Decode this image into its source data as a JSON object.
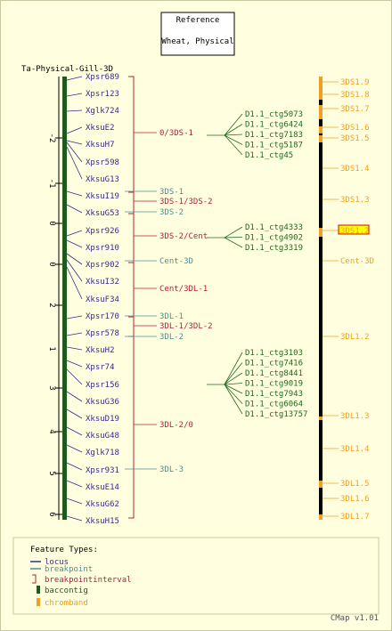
{
  "reference_box": {
    "line1": "Reference",
    "line2": "Wheat, Physical"
  },
  "map_title": "Ta-Physical-Gill-3D",
  "ruler_ticks": [
    "-2",
    "-1",
    "0",
    "0",
    "1",
    "2",
    "3",
    "4",
    "5",
    "6"
  ],
  "loci": [
    "Xpsr689",
    "Xpsr123",
    "Xglk724",
    "XksuE2",
    "XksuH7",
    "Xpsr598",
    "XksuG13",
    "XksuI19",
    "XksuG53",
    "Xpsr926",
    "Xpsr910",
    "Xpsr902",
    "XksuI32",
    "XksuF34",
    "Xpsr170",
    "Xpsr578",
    "XksuH2",
    "Xpsr74",
    "Xpsr156",
    "XksuG36",
    "XksuD19",
    "XksuG48",
    "Xglk718",
    "Xpsr931",
    "XksuE14",
    "XksuG62",
    "XksuH15"
  ],
  "intervals": [
    "0/3DS-1",
    "3DS-1/3DS-2",
    "3DS-2/Cent",
    "Cent/3DL-1",
    "3DL-1/3DL-2",
    "3DL-2/0"
  ],
  "breakpoints": [
    "3DS-1",
    "3DS-2",
    "Cent-3D",
    "3DL-1",
    "3DL-2",
    "3DL-3"
  ],
  "contig_groups": [
    [
      "D1.1_ctg5073",
      "D1.1_ctg6424",
      "D1.1_ctg7183",
      "D1.1_ctg5187",
      "D1.1_ctg45"
    ],
    [
      "D1.1_ctg4333",
      "D1.1_ctg4902",
      "D1.1_ctg3319"
    ],
    [
      "D1.1_ctg3103",
      "D1.1_ctg7416",
      "D1.1_ctg8441",
      "D1.1_ctg9019",
      "D1.1_ctg7943",
      "D1.1_ctg6064",
      "D1.1_ctg13757"
    ]
  ],
  "bands": [
    "3DS1.9",
    "3DS1.8",
    "3DS1.7",
    "3DS1.6",
    "3DS1.5",
    "3DS1.4",
    "3DS1.3",
    "3DS1.2",
    "Cent-3D",
    "3DL1.2",
    "3DL1.3",
    "3DL1.4",
    "3DL1.5",
    "3DL1.6",
    "3DL1.7"
  ],
  "highlighted_band": "3DS1.2",
  "legend": {
    "title": "Feature Types:",
    "items": [
      {
        "label": "locus",
        "color": "#3a2a8a"
      },
      {
        "label": "breakpoint",
        "color": "#4a9090"
      },
      {
        "label": "breakpointinterval",
        "color": "#b02040"
      },
      {
        "label": "baccontig",
        "color": "#1e5a1e"
      },
      {
        "label": "chromband",
        "color": "#f0a020"
      }
    ]
  },
  "footer": "CMap v1.01",
  "colors": {
    "locus": "#3a2a8a",
    "breakpoint": "#4a9090",
    "interval": "#b02040",
    "contig": "#1e6a1e",
    "band": "#f0a020",
    "contig_bar": "#1e5a1e",
    "highlight": "#ffff00"
  }
}
